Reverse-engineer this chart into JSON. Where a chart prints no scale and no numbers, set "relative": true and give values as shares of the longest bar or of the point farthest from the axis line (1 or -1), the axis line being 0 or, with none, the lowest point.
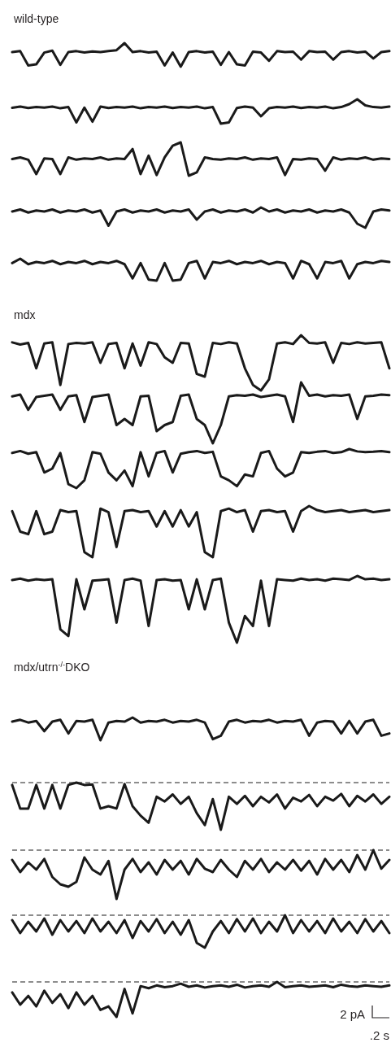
{
  "chart_data": [
    {
      "type": "line",
      "title": "wild-type",
      "relative": true,
      "color": "#1a1a1a",
      "categories": [
        null,
        null,
        null,
        null,
        null,
        null,
        null,
        null,
        null,
        null,
        null,
        null,
        null,
        null,
        null,
        null,
        null,
        null,
        null,
        null,
        null,
        null,
        null,
        null,
        null,
        null,
        null,
        null,
        null,
        null,
        null,
        null,
        null,
        null,
        null,
        null,
        null,
        null,
        null,
        null,
        null,
        null,
        null,
        null,
        null,
        null,
        null,
        null
      ],
      "values": [
        0.62,
        0.66,
        0.05,
        0.1,
        0.6,
        0.68,
        0.08,
        0.62,
        0.66,
        0.6,
        0.65,
        0.62,
        0.66,
        0.7,
        1,
        0.62,
        0.66,
        0.6,
        0.64,
        0.05,
        0.6,
        0,
        0.62,
        0.66,
        0.6,
        0.64,
        0.08,
        0.62,
        0.1,
        0.05,
        0.64,
        0.6,
        0.25,
        0.66,
        0.62,
        0.64,
        0.3,
        0.66,
        0.62,
        0.64,
        0.3,
        0.62,
        0.66,
        0.6,
        0.64,
        0.35,
        0.62,
        0.66
      ]
    },
    {
      "type": "line",
      "relative": true,
      "color": "#1a1a1a",
      "categories": [
        null,
        null,
        null,
        null,
        null,
        null,
        null,
        null,
        null,
        null,
        null,
        null,
        null,
        null,
        null,
        null,
        null,
        null,
        null,
        null,
        null,
        null,
        null,
        null,
        null,
        null,
        null,
        null,
        null,
        null,
        null,
        null,
        null,
        null,
        null,
        null,
        null,
        null,
        null,
        null,
        null,
        null,
        null,
        null,
        null,
        null,
        null,
        null
      ],
      "values": [
        0.65,
        0.7,
        0.64,
        0.68,
        0.66,
        0.7,
        0.63,
        0.68,
        0.05,
        0.66,
        0.08,
        0.7,
        0.64,
        0.68,
        0.66,
        0.7,
        0.63,
        0.68,
        0.66,
        0.7,
        0.64,
        0.68,
        0.66,
        0.7,
        0.63,
        0.68,
        0,
        0.05,
        0.64,
        0.7,
        0.66,
        0.3,
        0.63,
        0.68,
        0.66,
        0.7,
        0.64,
        0.68,
        0.66,
        0.7,
        0.63,
        0.68,
        0.8,
        1,
        0.75,
        0.68,
        0.66,
        0.7
      ]
    },
    {
      "type": "line",
      "relative": true,
      "color": "#1a1a1a",
      "categories": [
        null,
        null,
        null,
        null,
        null,
        null,
        null,
        null,
        null,
        null,
        null,
        null,
        null,
        null,
        null,
        null,
        null,
        null,
        null,
        null,
        null,
        null,
        null,
        null,
        null,
        null,
        null,
        null,
        null,
        null,
        null,
        null,
        null,
        null,
        null,
        null,
        null,
        null,
        null,
        null,
        null,
        null,
        null,
        null,
        null,
        null,
        null,
        null
      ],
      "values": [
        0.5,
        0.55,
        0.48,
        0.05,
        0.52,
        0.5,
        0.05,
        0.55,
        0.48,
        0.52,
        0.5,
        0.55,
        0.48,
        0.52,
        0.5,
        0.8,
        0.05,
        0.6,
        0.02,
        0.55,
        0.9,
        1,
        0,
        0.1,
        0.55,
        0.5,
        0.48,
        0.52,
        0.5,
        0.55,
        0.48,
        0.52,
        0.5,
        0.55,
        0.02,
        0.5,
        0.48,
        0.52,
        0.5,
        0.15,
        0.55,
        0.48,
        0.52,
        0.5,
        0.55,
        0.48,
        0.52,
        0.5
      ]
    },
    {
      "type": "line",
      "relative": true,
      "color": "#1a1a1a",
      "categories": [
        null,
        null,
        null,
        null,
        null,
        null,
        null,
        null,
        null,
        null,
        null,
        null,
        null,
        null,
        null,
        null,
        null,
        null,
        null,
        null,
        null,
        null,
        null,
        null,
        null,
        null,
        null,
        null,
        null,
        null,
        null,
        null,
        null,
        null,
        null,
        null,
        null,
        null,
        null,
        null,
        null,
        null,
        null,
        null,
        null,
        null,
        null,
        null
      ],
      "values": [
        0.8,
        0.9,
        0.75,
        0.85,
        0.8,
        0.9,
        0.75,
        0.85,
        0.8,
        0.9,
        0.75,
        0.85,
        0.1,
        0.8,
        0.9,
        0.75,
        0.85,
        0.8,
        0.9,
        0.75,
        0.85,
        0.8,
        0.9,
        0.4,
        0.8,
        0.9,
        0.75,
        0.85,
        0.8,
        0.9,
        0.75,
        1,
        0.8,
        0.9,
        0.75,
        0.85,
        0.8,
        0.9,
        0.75,
        0.85,
        0.8,
        0.9,
        0.75,
        0.2,
        0,
        0.8,
        0.9,
        0.85
      ]
    },
    {
      "type": "line",
      "relative": true,
      "color": "#1a1a1a",
      "categories": [
        null,
        null,
        null,
        null,
        null,
        null,
        null,
        null,
        null,
        null,
        null,
        null,
        null,
        null,
        null,
        null,
        null,
        null,
        null,
        null,
        null,
        null,
        null,
        null,
        null,
        null,
        null,
        null,
        null,
        null,
        null,
        null,
        null,
        null,
        null,
        null,
        null,
        null,
        null,
        null,
        null,
        null,
        null,
        null,
        null,
        null,
        null,
        null
      ],
      "values": [
        0.8,
        1,
        0.75,
        0.85,
        0.8,
        0.9,
        0.75,
        0.85,
        0.8,
        0.9,
        0.75,
        0.85,
        0.8,
        0.9,
        0.75,
        0.1,
        0.8,
        0.05,
        0,
        0.8,
        0,
        0.05,
        0.8,
        0.9,
        0.1,
        0.85,
        0.8,
        0.9,
        0.75,
        0.85,
        0.8,
        0.9,
        0.75,
        0.85,
        0.8,
        0.1,
        0.9,
        0.75,
        0.1,
        0.85,
        0.8,
        0.9,
        0.1,
        0.75,
        0.85,
        0.8,
        0.9,
        0.85
      ]
    },
    {
      "type": "line",
      "title": "mdx",
      "relative": true,
      "color": "#1a1a1a",
      "categories": [
        null,
        null,
        null,
        null,
        null,
        null,
        null,
        null,
        null,
        null,
        null,
        null,
        null,
        null,
        null,
        null,
        null,
        null,
        null,
        null,
        null,
        null,
        null,
        null,
        null,
        null,
        null,
        null,
        null,
        null,
        null,
        null,
        null,
        null,
        null,
        null,
        null,
        null,
        null,
        null,
        null,
        null,
        null,
        null,
        null,
        null,
        null,
        null
      ],
      "values": [
        0.87,
        0.83,
        0.86,
        0.4,
        0.85,
        0.87,
        0.1,
        0.84,
        0.86,
        0.85,
        0.87,
        0.5,
        0.84,
        0.86,
        0.4,
        0.85,
        0.45,
        0.87,
        0.84,
        0.6,
        0.5,
        0.86,
        0.85,
        0.3,
        0.25,
        0.86,
        0.84,
        0.87,
        0.85,
        0.4,
        0.1,
        0,
        0.2,
        0.85,
        0.87,
        0.84,
        1,
        0.86,
        0.85,
        0.87,
        0.5,
        0.86,
        0.84,
        0.87,
        0.85,
        0.86,
        0.87,
        0.4
      ]
    },
    {
      "type": "line",
      "relative": true,
      "color": "#1a1a1a",
      "categories": [
        null,
        null,
        null,
        null,
        null,
        null,
        null,
        null,
        null,
        null,
        null,
        null,
        null,
        null,
        null,
        null,
        null,
        null,
        null,
        null,
        null,
        null,
        null,
        null,
        null,
        null,
        null,
        null,
        null,
        null,
        null,
        null,
        null,
        null,
        null,
        null,
        null,
        null,
        null,
        null,
        null,
        null,
        null,
        null,
        null,
        null,
        null,
        null
      ],
      "values": [
        0.77,
        0.8,
        0.55,
        0.76,
        0.78,
        0.8,
        0.55,
        0.77,
        0.79,
        0.35,
        0.76,
        0.78,
        0.8,
        0.3,
        0.4,
        0.3,
        0.77,
        0.78,
        0.2,
        0.3,
        0.35,
        0.78,
        0.8,
        0.4,
        0.3,
        0,
        0.3,
        0.77,
        0.79,
        0.78,
        0.8,
        0.76,
        0.78,
        0.8,
        0.77,
        0.35,
        1,
        0.78,
        0.8,
        0.77,
        0.79,
        0.78,
        0.8,
        0.4,
        0.77,
        0.78,
        0.8,
        0.79
      ]
    },
    {
      "type": "line",
      "relative": true,
      "color": "#1a1a1a",
      "categories": [
        null,
        null,
        null,
        null,
        null,
        null,
        null,
        null,
        null,
        null,
        null,
        null,
        null,
        null,
        null,
        null,
        null,
        null,
        null,
        null,
        null,
        null,
        null,
        null,
        null,
        null,
        null,
        null,
        null,
        null,
        null,
        null,
        null,
        null,
        null,
        null,
        null,
        null,
        null,
        null,
        null,
        null,
        null,
        null,
        null,
        null,
        null,
        null
      ],
      "values": [
        0.9,
        0.95,
        0.88,
        0.92,
        0.4,
        0.5,
        0.9,
        0.1,
        0,
        0.2,
        0.92,
        0.88,
        0.4,
        0.2,
        0.45,
        0.05,
        0.92,
        0.3,
        0.9,
        0.95,
        0.4,
        0.88,
        0.92,
        0.95,
        0.9,
        0.93,
        0.3,
        0.2,
        0.05,
        0.35,
        0.3,
        0.9,
        0.95,
        0.5,
        0.3,
        0.4,
        0.92,
        0.9,
        0.93,
        0.95,
        0.9,
        0.92,
        1,
        0.94,
        0.92,
        0.93,
        0.95,
        0.92
      ]
    },
    {
      "type": "line",
      "relative": true,
      "color": "#1a1a1a",
      "categories": [
        null,
        null,
        null,
        null,
        null,
        null,
        null,
        null,
        null,
        null,
        null,
        null,
        null,
        null,
        null,
        null,
        null,
        null,
        null,
        null,
        null,
        null,
        null,
        null,
        null,
        null,
        null,
        null,
        null,
        null,
        null,
        null,
        null,
        null,
        null,
        null,
        null,
        null,
        null,
        null,
        null,
        null,
        null,
        null,
        null,
        null,
        null,
        null
      ],
      "values": [
        0.9,
        0.5,
        0.45,
        0.9,
        0.45,
        0.5,
        0.92,
        0.88,
        0.9,
        0.1,
        0,
        0.95,
        0.88,
        0.2,
        0.9,
        0.92,
        0.88,
        0.9,
        0.6,
        0.9,
        0.6,
        0.92,
        0.6,
        0.88,
        0.1,
        0,
        0.9,
        0.95,
        0.88,
        0.92,
        0.5,
        0.9,
        0.92,
        0.88,
        0.9,
        0.5,
        0.9,
        1,
        0.92,
        0.88,
        0.9,
        0.92,
        0.88,
        0.9,
        0.92,
        0.88,
        0.9,
        0.92
      ]
    },
    {
      "type": "line",
      "relative": true,
      "color": "#1a1a1a",
      "categories": [
        null,
        null,
        null,
        null,
        null,
        null,
        null,
        null,
        null,
        null,
        null,
        null,
        null,
        null,
        null,
        null,
        null,
        null,
        null,
        null,
        null,
        null,
        null,
        null,
        null,
        null,
        null,
        null,
        null,
        null,
        null,
        null,
        null,
        null,
        null,
        null,
        null,
        null,
        null,
        null,
        null,
        null,
        null,
        null,
        null,
        null,
        null,
        null
      ],
      "values": [
        0.94,
        0.96,
        0.93,
        0.95,
        0.94,
        0.95,
        0.2,
        0.1,
        0.95,
        0.5,
        0.93,
        0.94,
        0.95,
        0.3,
        0.94,
        0.96,
        0.93,
        0.25,
        0.94,
        0.95,
        0.93,
        0.94,
        0.5,
        0.95,
        0.5,
        0.94,
        0.96,
        0.3,
        0,
        0.4,
        0.25,
        0.93,
        0.25,
        0.95,
        0.94,
        0.93,
        0.96,
        0.94,
        0.95,
        0.93,
        0.96,
        0.95,
        0.94,
        1,
        0.95,
        0.96,
        0.94,
        0.95
      ]
    },
    {
      "type": "line",
      "title": "mdx/utrn$^{-/-}$DKO",
      "relative": true,
      "color": "#1a1a1a",
      "categories": [
        null,
        null,
        null,
        null,
        null,
        null,
        null,
        null,
        null,
        null,
        null,
        null,
        null,
        null,
        null,
        null,
        null,
        null,
        null,
        null,
        null,
        null,
        null,
        null,
        null,
        null,
        null,
        null,
        null,
        null,
        null,
        null,
        null,
        null,
        null,
        null,
        null,
        null,
        null,
        null,
        null,
        null,
        null,
        null,
        null,
        null,
        null,
        null
      ],
      "values": [
        0.82,
        0.9,
        0.78,
        0.85,
        0.4,
        0.82,
        0.9,
        0.3,
        0.85,
        0.82,
        0.9,
        0,
        0.78,
        0.85,
        0.82,
        1,
        0.78,
        0.85,
        0.82,
        0.9,
        0.78,
        0.85,
        0.82,
        0.9,
        0.78,
        0.05,
        0.2,
        0.82,
        0.9,
        0.78,
        0.85,
        0.82,
        0.9,
        0.78,
        0.85,
        0.82,
        0.9,
        0.2,
        0.78,
        0.85,
        0.82,
        0.3,
        0.85,
        0.3,
        0.82,
        0.9,
        0.2,
        0.3
      ]
    },
    {
      "type": "line",
      "relative": true,
      "color": "#1a1a1a",
      "ref_lines": [
        {
          "axis": "y",
          "value": 1,
          "line_style": "dashed",
          "color": "#1a1a1a"
        }
      ],
      "categories": [
        null,
        null,
        null,
        null,
        null,
        null,
        null,
        null,
        null,
        null,
        null,
        null,
        null,
        null,
        null,
        null,
        null,
        null,
        null,
        null,
        null,
        null,
        null,
        null,
        null,
        null,
        null,
        null,
        null,
        null,
        null,
        null,
        null,
        null,
        null,
        null,
        null,
        null,
        null,
        null,
        null,
        null,
        null,
        null,
        null,
        null,
        null,
        null
      ],
      "values": [
        0.95,
        0.45,
        0.45,
        0.95,
        0.45,
        0.95,
        0.45,
        0.95,
        1,
        0.95,
        0.96,
        0.45,
        0.5,
        0.45,
        0.97,
        0.5,
        0.3,
        0.15,
        0.7,
        0.6,
        0.75,
        0.55,
        0.7,
        0.35,
        0.1,
        0.65,
        0,
        0.7,
        0.55,
        0.72,
        0.5,
        0.7,
        0.58,
        0.75,
        0.45,
        0.68,
        0.6,
        0.74,
        0.5,
        0.7,
        0.62,
        0.76,
        0.5,
        0.72,
        0.6,
        0.75,
        0.55,
        0.7
      ]
    },
    {
      "type": "line",
      "relative": true,
      "color": "#1a1a1a",
      "ref_lines": [
        {
          "axis": "y",
          "value": 1,
          "line_style": "dashed",
          "color": "#1a1a1a"
        }
      ],
      "categories": [
        null,
        null,
        null,
        null,
        null,
        null,
        null,
        null,
        null,
        null,
        null,
        null,
        null,
        null,
        null,
        null,
        null,
        null,
        null,
        null,
        null,
        null,
        null,
        null,
        null,
        null,
        null,
        null,
        null,
        null,
        null,
        null,
        null,
        null,
        null,
        null,
        null,
        null,
        null,
        null,
        null,
        null,
        null,
        null,
        null,
        null,
        null,
        null
      ],
      "values": [
        0.8,
        0.55,
        0.75,
        0.6,
        0.82,
        0.45,
        0.3,
        0.25,
        0.35,
        0.85,
        0.6,
        0.5,
        0.78,
        0,
        0.6,
        0.82,
        0.55,
        0.75,
        0.5,
        0.8,
        0.6,
        0.78,
        0.5,
        0.82,
        0.62,
        0.55,
        0.8,
        0.6,
        0.45,
        0.78,
        0.6,
        0.82,
        0.55,
        0.75,
        0.6,
        0.8,
        0.58,
        0.78,
        0.5,
        0.82,
        0.6,
        0.8,
        0.55,
        0.9,
        0.6,
        1,
        0.62,
        0.8
      ]
    },
    {
      "type": "line",
      "relative": true,
      "color": "#1a1a1a",
      "ref_lines": [
        {
          "axis": "y",
          "value": 1,
          "line_style": "dashed",
          "color": "#1a1a1a"
        }
      ],
      "categories": [
        null,
        null,
        null,
        null,
        null,
        null,
        null,
        null,
        null,
        null,
        null,
        null,
        null,
        null,
        null,
        null,
        null,
        null,
        null,
        null,
        null,
        null,
        null,
        null,
        null,
        null,
        null,
        null,
        null,
        null,
        null,
        null,
        null,
        null,
        null,
        null,
        null,
        null,
        null,
        null,
        null,
        null,
        null,
        null,
        null,
        null,
        null,
        null
      ],
      "values": [
        0.85,
        0.45,
        0.8,
        0.5,
        0.9,
        0.4,
        0.85,
        0.5,
        0.82,
        0.45,
        0.9,
        0.5,
        0.8,
        0.45,
        0.85,
        0.3,
        0.82,
        0.5,
        0.88,
        0.45,
        0.8,
        0.4,
        0.85,
        0.15,
        0,
        0.5,
        0.82,
        0.45,
        0.88,
        0.5,
        0.9,
        0.45,
        0.8,
        0.5,
        1,
        0.45,
        0.85,
        0.5,
        0.82,
        0.45,
        0.9,
        0.5,
        0.8,
        0.45,
        0.88,
        0.5,
        0.82,
        0.45
      ]
    },
    {
      "type": "line",
      "relative": true,
      "color": "#1a1a1a",
      "ref_lines": [
        {
          "axis": "y",
          "value": 1,
          "line_style": "dashed",
          "color": "#1a1a1a"
        }
      ],
      "annotations": [
        "2 pA",
        ".2 s"
      ],
      "categories": [
        null,
        null,
        null,
        null,
        null,
        null,
        null,
        null,
        null,
        null,
        null,
        null,
        null,
        null,
        null,
        null,
        null,
        null,
        null,
        null,
        null,
        null,
        null,
        null,
        null,
        null,
        null,
        null,
        null,
        null,
        null,
        null,
        null,
        null,
        null,
        null,
        null,
        null,
        null,
        null,
        null,
        null,
        null,
        null,
        null,
        null,
        null,
        null
      ],
      "values": [
        0.7,
        0.35,
        0.6,
        0.3,
        0.75,
        0.4,
        0.65,
        0.25,
        0.7,
        0.35,
        0.6,
        0.2,
        0.3,
        0,
        0.8,
        0.1,
        0.88,
        0.82,
        0.9,
        0.85,
        0.88,
        0.95,
        0.86,
        0.9,
        0.84,
        0.88,
        0.9,
        0.86,
        0.92,
        0.84,
        0.88,
        0.9,
        0.86,
        1,
        0.85,
        0.88,
        0.9,
        0.86,
        0.88,
        0.9,
        0.85,
        0.92,
        0.88,
        0.86,
        0.9,
        0.88,
        0.86,
        0.9
      ]
    }
  ]
}
